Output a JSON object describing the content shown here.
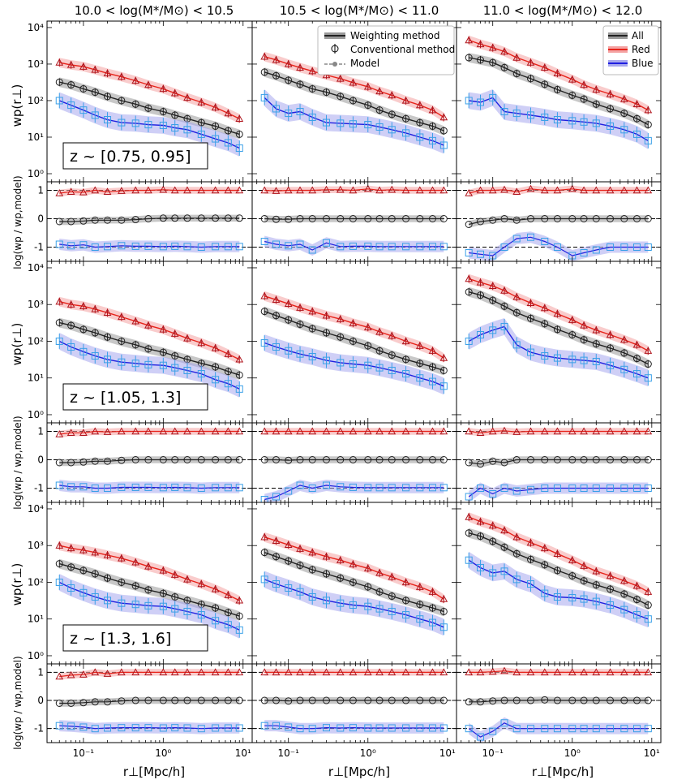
{
  "figure": {
    "column_titles": [
      "10.0 < log(M*/M⊙) < 10.5",
      "10.5 < log(M*/M⊙) < 11.0",
      "11.0 < log(M*/M⊙) < 12.0"
    ],
    "y_label_main": "wp(r⊥)",
    "y_label_ratio": "log(wp / wp,model)",
    "x_label": "r⊥[Mpc/h]",
    "x_tick_labels": [
      "10⁻¹",
      "10⁰",
      "10¹"
    ],
    "y_tick_labels_main": [
      "10⁰",
      "10¹",
      "10²",
      "10³",
      "10⁴"
    ],
    "y_tick_labels_ratio": [
      "1",
      "0",
      "-1"
    ],
    "legend_methods": [
      "Weighting method",
      "Conventional method",
      "Model"
    ],
    "legend_samples": [
      "All",
      "Red",
      "Blue"
    ],
    "redshift_labels": [
      "z ~ [0.75, 0.95]",
      "z ~ [1.05, 1.3]",
      "z ~ [1.3, 1.6]"
    ]
  },
  "colors": {
    "all": "#222222",
    "red": "#e8231a",
    "blue": "#1f1fe0",
    "red_marker": "#b0141c",
    "blue_marker": "#3aa0e8",
    "all_band": "#9a9a9a",
    "red_band": "#f4a3a3",
    "blue_band": "#a8a8ee"
  },
  "chart_data": {
    "type": "line",
    "x_scale": "log",
    "xlim": [
      0.035,
      13
    ],
    "ylim_main": [
      0.6,
      15000
    ],
    "ylim_ratio": [
      -1.5,
      1.3
    ],
    "x": [
      0.05,
      0.07,
      0.1,
      0.14,
      0.2,
      0.3,
      0.45,
      0.65,
      1.0,
      1.4,
      2.0,
      3.0,
      4.5,
      6.5,
      9.0
    ],
    "panels": [
      {
        "row": 0,
        "col": 0,
        "all": [
          320,
          270,
          210,
          170,
          130,
          100,
          80,
          62,
          50,
          40,
          32,
          25,
          20,
          15,
          12
        ],
        "red": [
          1100,
          950,
          850,
          700,
          560,
          450,
          350,
          270,
          210,
          160,
          120,
          90,
          65,
          45,
          32
        ],
        "blue": [
          100,
          75,
          55,
          40,
          30,
          25,
          24,
          22,
          21,
          18,
          16,
          12,
          9,
          7,
          5
        ],
        "ratio_all": [
          -0.1,
          -0.1,
          -0.08,
          -0.05,
          -0.05,
          -0.05,
          -0.03,
          0,
          0.02,
          0.02,
          0.02,
          0.02,
          0.02,
          0.02,
          0.02
        ],
        "ratio_red": [
          0.9,
          0.95,
          0.93,
          1.0,
          0.95,
          0.98,
          1.0,
          1.0,
          1.02,
          1.0,
          1.0,
          1.0,
          1.0,
          1.0,
          1.0
        ],
        "ratio_blue": [
          -0.9,
          -0.95,
          -0.92,
          -1.0,
          -0.98,
          -0.95,
          -0.97,
          -0.97,
          -0.98,
          -0.97,
          -0.98,
          -1.0,
          -0.98,
          -0.98,
          -0.98
        ]
      },
      {
        "row": 0,
        "col": 1,
        "all": [
          600,
          480,
          360,
          280,
          210,
          170,
          130,
          100,
          75,
          55,
          42,
          32,
          25,
          20,
          15
        ],
        "red": [
          1600,
          1300,
          1000,
          800,
          640,
          500,
          400,
          310,
          240,
          180,
          140,
          100,
          75,
          55,
          35
        ],
        "blue": [
          120,
          60,
          45,
          50,
          35,
          25,
          24,
          23,
          22,
          19,
          16,
          13,
          10,
          8,
          6
        ],
        "ratio_all": [
          0,
          -0.02,
          -0.02,
          0,
          0,
          0,
          0,
          0,
          0,
          0,
          0,
          0,
          0,
          0,
          0
        ],
        "ratio_red": [
          1.0,
          0.98,
          1.0,
          1.0,
          1.0,
          1.02,
          1.02,
          1.0,
          1.05,
          1.0,
          1.02,
          1.0,
          1.0,
          1.0,
          1.0
        ],
        "ratio_blue": [
          -0.8,
          -0.9,
          -0.95,
          -0.9,
          -1.1,
          -0.85,
          -0.98,
          -0.97,
          -0.97,
          -0.98,
          -0.98,
          -0.98,
          -0.98,
          -0.98,
          -0.98
        ]
      },
      {
        "row": 0,
        "col": 2,
        "all": [
          1500,
          1300,
          1100,
          800,
          550,
          400,
          280,
          200,
          140,
          110,
          80,
          60,
          45,
          32,
          22
        ],
        "red": [
          4500,
          3500,
          2800,
          2200,
          1500,
          1100,
          800,
          560,
          380,
          270,
          200,
          150,
          110,
          80,
          55
        ],
        "blue": [
          100,
          90,
          120,
          50,
          45,
          40,
          35,
          30,
          28,
          26,
          24,
          20,
          16,
          12,
          8
        ],
        "ratio_all": [
          -0.2,
          -0.1,
          -0.05,
          0,
          -0.05,
          0,
          0,
          0,
          0,
          0,
          0,
          0,
          0,
          0,
          0
        ],
        "ratio_red": [
          0.9,
          1.0,
          1.0,
          1.02,
          0.95,
          1.05,
          1.0,
          1.0,
          1.05,
          1.0,
          1.0,
          1.0,
          1.0,
          1.0,
          1.0
        ],
        "ratio_blue": [
          -1.2,
          -1.25,
          -1.3,
          -1.0,
          -0.7,
          -0.65,
          -0.8,
          -1.0,
          -1.3,
          -1.2,
          -1.1,
          -1.0,
          -1.0,
          -1.0,
          -1.0
        ]
      },
      {
        "row": 1,
        "col": 0,
        "all": [
          320,
          270,
          210,
          170,
          130,
          100,
          80,
          62,
          50,
          40,
          32,
          25,
          20,
          15,
          12
        ],
        "red": [
          1200,
          1000,
          900,
          750,
          600,
          460,
          350,
          270,
          210,
          160,
          120,
          90,
          65,
          45,
          32
        ],
        "blue": [
          100,
          70,
          52,
          40,
          32,
          27,
          25,
          23,
          22,
          19,
          16,
          13,
          9,
          7,
          5
        ],
        "ratio_all": [
          -0.1,
          -0.1,
          -0.08,
          -0.05,
          -0.05,
          -0.02,
          0,
          0,
          0,
          0,
          0,
          0,
          0,
          0,
          0
        ],
        "ratio_red": [
          0.9,
          0.95,
          0.95,
          1.0,
          0.98,
          1.0,
          1.0,
          1.0,
          1.0,
          1.0,
          1.0,
          1.0,
          1.0,
          1.0,
          1.0
        ],
        "ratio_blue": [
          -0.9,
          -0.95,
          -0.95,
          -1.0,
          -1.0,
          -0.97,
          -0.97,
          -0.97,
          -0.98,
          -0.97,
          -0.98,
          -1.0,
          -0.98,
          -0.98,
          -0.98
        ]
      },
      {
        "row": 1,
        "col": 1,
        "all": [
          650,
          500,
          380,
          290,
          220,
          170,
          130,
          100,
          75,
          55,
          42,
          32,
          25,
          20,
          16
        ],
        "red": [
          1700,
          1350,
          1050,
          820,
          650,
          500,
          400,
          310,
          240,
          180,
          140,
          100,
          75,
          55,
          35
        ],
        "blue": [
          90,
          70,
          55,
          45,
          38,
          30,
          26,
          24,
          22,
          19,
          16,
          13,
          10,
          8,
          6
        ],
        "ratio_all": [
          0,
          0,
          -0.02,
          0,
          0,
          0,
          0,
          0,
          0,
          0,
          0,
          0,
          0,
          0,
          0
        ],
        "ratio_red": [
          1.0,
          1.0,
          1.0,
          1.0,
          1.0,
          1.0,
          1.0,
          1.0,
          1.0,
          1.0,
          1.0,
          1.0,
          1.0,
          1.0,
          1.0
        ],
        "ratio_blue": [
          -1.4,
          -1.3,
          -1.1,
          -0.9,
          -1.0,
          -0.9,
          -0.95,
          -0.97,
          -0.98,
          -0.98,
          -0.98,
          -0.98,
          -0.98,
          -0.98,
          -0.98
        ]
      },
      {
        "row": 1,
        "col": 2,
        "all": [
          2200,
          1800,
          1300,
          900,
          600,
          420,
          300,
          210,
          150,
          110,
          85,
          65,
          48,
          34,
          24
        ],
        "red": [
          5000,
          4000,
          3200,
          2400,
          1600,
          1100,
          800,
          560,
          380,
          270,
          200,
          150,
          110,
          80,
          55
        ],
        "blue": [
          100,
          150,
          200,
          250,
          80,
          50,
          40,
          35,
          32,
          30,
          28,
          22,
          17,
          13,
          10
        ],
        "ratio_all": [
          -0.1,
          -0.15,
          -0.05,
          -0.1,
          0,
          0,
          0,
          0,
          0,
          0,
          0,
          0,
          0,
          0,
          0
        ],
        "ratio_red": [
          1.0,
          0.95,
          1.0,
          1.02,
          0.98,
          1.0,
          1.0,
          1.0,
          1.0,
          1.0,
          1.0,
          1.0,
          1.0,
          1.0,
          1.0
        ],
        "ratio_blue": [
          -1.3,
          -1.0,
          -1.2,
          -1.0,
          -1.1,
          -1.05,
          -1.0,
          -1.0,
          -1.0,
          -1.0,
          -1.0,
          -1.0,
          -1.0,
          -1.0,
          -1.0
        ]
      },
      {
        "row": 2,
        "col": 0,
        "all": [
          320,
          260,
          210,
          170,
          130,
          100,
          80,
          62,
          50,
          40,
          32,
          25,
          20,
          15,
          12
        ],
        "red": [
          1000,
          850,
          750,
          650,
          550,
          450,
          350,
          270,
          210,
          160,
          120,
          90,
          65,
          45,
          32
        ],
        "blue": [
          100,
          70,
          52,
          40,
          32,
          27,
          25,
          23,
          22,
          19,
          16,
          13,
          9,
          7,
          5
        ],
        "ratio_all": [
          -0.1,
          -0.1,
          -0.08,
          -0.05,
          -0.05,
          -0.02,
          0,
          0,
          0,
          0,
          0,
          0,
          0,
          0,
          0
        ],
        "ratio_red": [
          0.85,
          0.9,
          0.92,
          1.0,
          0.95,
          1.0,
          1.0,
          1.0,
          1.0,
          1.0,
          1.0,
          1.0,
          1.0,
          1.0,
          1.0
        ],
        "ratio_blue": [
          -0.9,
          -0.92,
          -0.95,
          -1.0,
          -0.98,
          -0.97,
          -0.97,
          -0.97,
          -0.98,
          -0.97,
          -0.98,
          -1.0,
          -0.98,
          -0.98,
          -0.98
        ]
      },
      {
        "row": 2,
        "col": 1,
        "all": [
          650,
          500,
          380,
          290,
          220,
          170,
          130,
          100,
          75,
          55,
          42,
          32,
          25,
          20,
          16
        ],
        "red": [
          1700,
          1350,
          1050,
          820,
          650,
          500,
          400,
          310,
          240,
          180,
          140,
          100,
          75,
          55,
          35
        ],
        "blue": [
          120,
          90,
          70,
          55,
          40,
          32,
          27,
          24,
          22,
          19,
          16,
          13,
          10,
          8,
          6
        ],
        "ratio_all": [
          0,
          0,
          -0.02,
          0,
          0,
          0,
          0,
          0,
          0,
          0,
          0,
          0,
          0,
          0,
          0
        ],
        "ratio_red": [
          1.0,
          1.0,
          1.0,
          1.0,
          1.0,
          1.0,
          1.0,
          1.0,
          1.0,
          1.0,
          1.0,
          1.0,
          1.0,
          1.0,
          1.0
        ],
        "ratio_blue": [
          -0.9,
          -0.9,
          -0.95,
          -1.0,
          -1.0,
          -0.97,
          -0.98,
          -0.97,
          -0.98,
          -0.98,
          -0.98,
          -0.98,
          -0.98,
          -0.98,
          -0.98
        ]
      },
      {
        "row": 2,
        "col": 2,
        "all": [
          2200,
          1800,
          1300,
          900,
          600,
          420,
          300,
          210,
          150,
          110,
          85,
          65,
          48,
          34,
          24
        ],
        "red": [
          6000,
          4500,
          3500,
          2600,
          1700,
          1200,
          850,
          600,
          400,
          280,
          200,
          150,
          110,
          80,
          55
        ],
        "blue": [
          400,
          250,
          180,
          200,
          120,
          90,
          50,
          40,
          38,
          35,
          30,
          24,
          18,
          13,
          10
        ],
        "ratio_all": [
          -0.05,
          -0.05,
          -0.02,
          0,
          0,
          0,
          0.02,
          0,
          0,
          0,
          0,
          0,
          0,
          0,
          0
        ],
        "ratio_red": [
          1.0,
          1.0,
          1.02,
          1.05,
          1.0,
          1.0,
          1.0,
          1.0,
          1.0,
          1.0,
          1.0,
          1.0,
          1.0,
          1.0,
          1.0
        ],
        "ratio_blue": [
          -1.0,
          -1.3,
          -1.1,
          -0.8,
          -1.0,
          -1.0,
          -1.0,
          -1.0,
          -1.0,
          -1.0,
          -1.0,
          -1.0,
          -1.0,
          -1.0,
          -1.0
        ]
      }
    ]
  }
}
